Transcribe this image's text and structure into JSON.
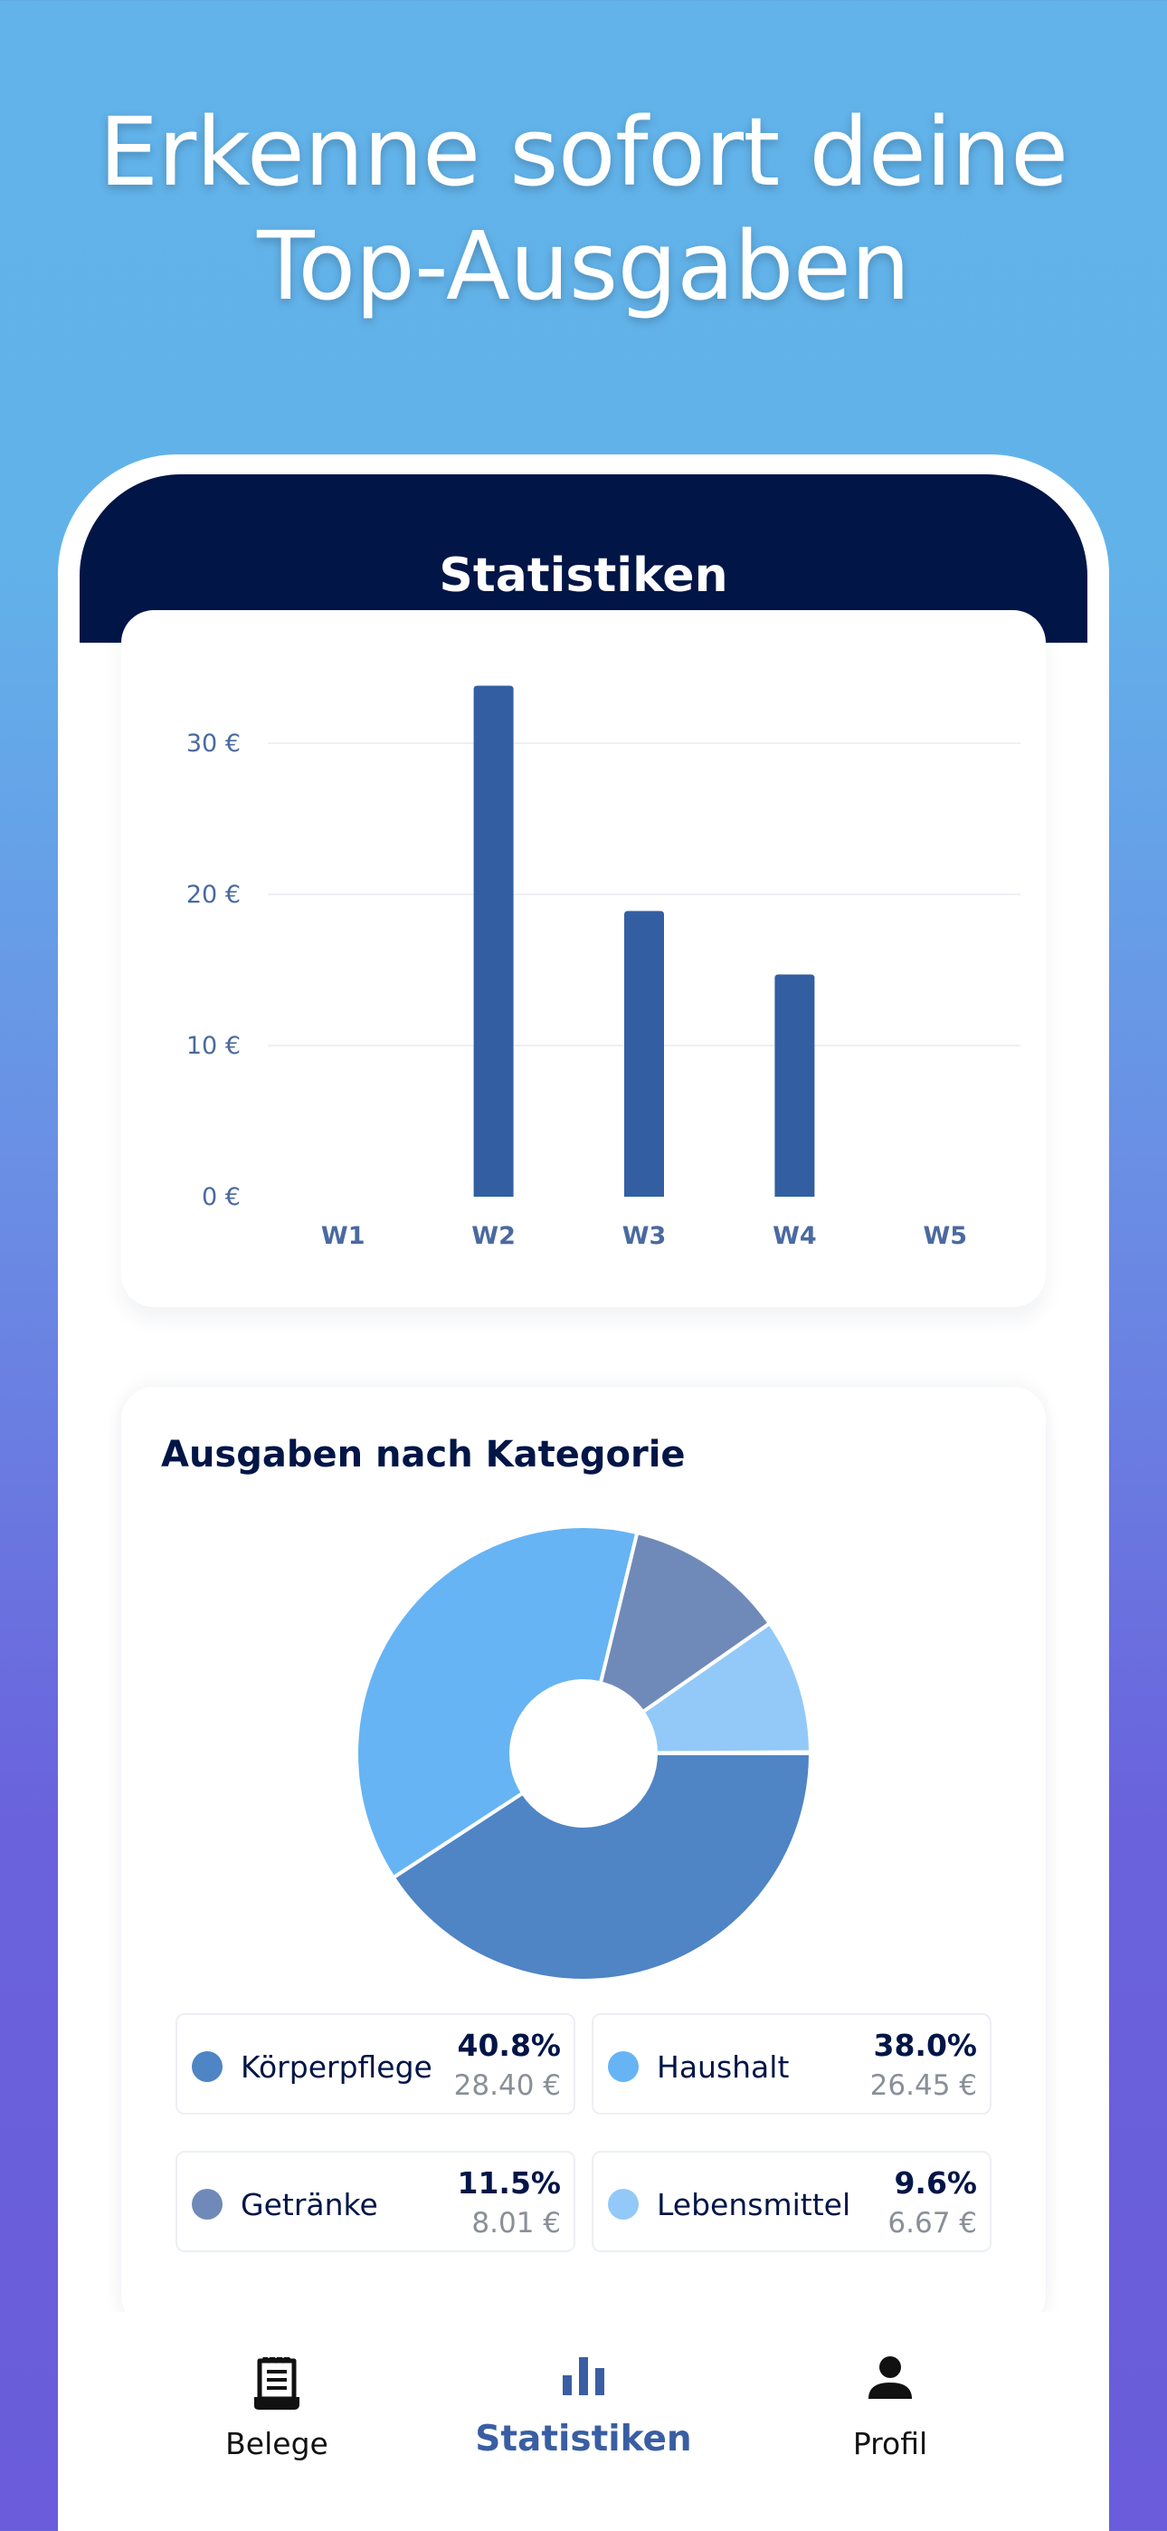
{
  "headline": {
    "line1": "Erkenne sofort deine",
    "line2": "Top-Ausgaben"
  },
  "header": {
    "title": "Statistiken"
  },
  "chart_data": [
    {
      "type": "bar",
      "categories": [
        "W1",
        "W2",
        "W3",
        "W4",
        "W5"
      ],
      "values": [
        0,
        33.8,
        18.9,
        14.7,
        0
      ],
      "title": "",
      "xlabel": "",
      "ylabel": "",
      "ylim": [
        0,
        35
      ],
      "yticks": [
        0,
        10,
        20,
        30
      ],
      "ytick_labels": [
        "0 €",
        "10 €",
        "20 €",
        "30 €"
      ],
      "grid": true,
      "bar_color": "#335ea2"
    },
    {
      "type": "pie",
      "title": "Ausgaben nach Kategorie",
      "donut": true,
      "slices": [
        {
          "label": "Körperpflege",
          "percent": 40.8,
          "amount": "28.40 €",
          "color": "#4f84c5"
        },
        {
          "label": "Haushalt",
          "percent": 38.0,
          "amount": "26.45 €",
          "color": "#66b4f4"
        },
        {
          "label": "Getränke",
          "percent": 11.5,
          "amount": "8.01 €",
          "color": "#6f8ab8"
        },
        {
          "label": "Lebensmittel",
          "percent": 9.6,
          "amount": "6.67 €",
          "color": "#92c9f8"
        }
      ]
    }
  ],
  "legend": [
    {
      "label": "Körperpflege",
      "pct": "40.8%",
      "amount": "28.40 €",
      "color": "#4f84c5"
    },
    {
      "label": "Haushalt",
      "pct": "38.0%",
      "amount": "26.45 €",
      "color": "#66b4f4"
    },
    {
      "label": "Getränke",
      "pct": "11.5%",
      "amount": "8.01 €",
      "color": "#6f8ab8"
    },
    {
      "label": "Lebensmittel",
      "pct": "9.6%",
      "amount": "6.67 €",
      "color": "#92c9f8"
    }
  ],
  "tabs": [
    {
      "label": "Belege",
      "icon": "receipt-icon",
      "active": false
    },
    {
      "label": "Statistiken",
      "icon": "bar-chart-icon",
      "active": true
    },
    {
      "label": "Profil",
      "icon": "person-icon",
      "active": false
    }
  ]
}
